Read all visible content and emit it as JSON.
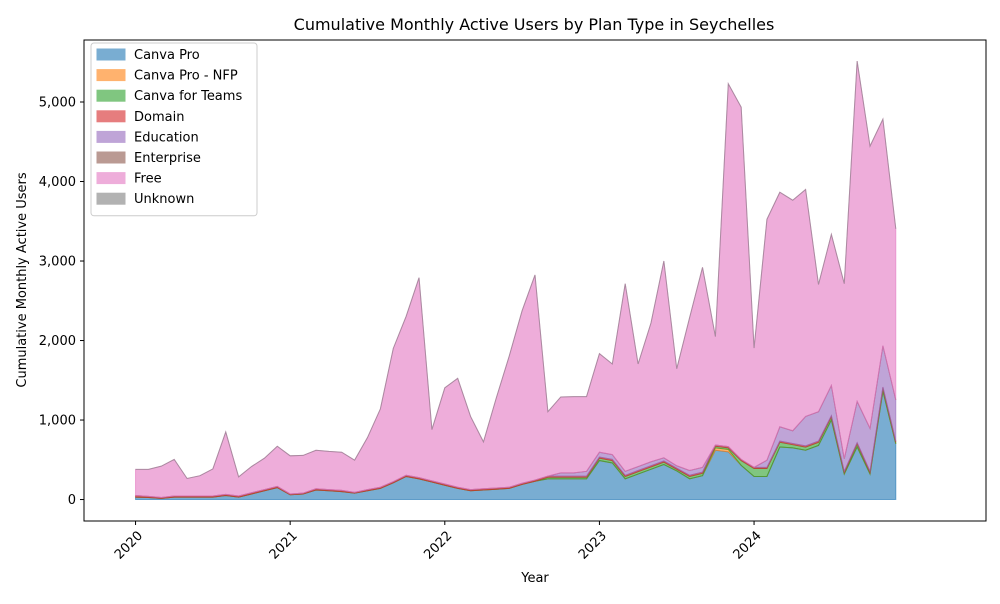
{
  "chart_data": {
    "type": "area",
    "stacked": true,
    "title": "Cumulative Monthly Active Users by Plan Type in Seychelles",
    "xlabel": "Year",
    "ylabel": "Cumulative Monthly Active Users",
    "x_ticks": [
      "2020",
      "2021",
      "2022",
      "2023",
      "2024"
    ],
    "y_ticks": [
      "0",
      "1,000",
      "2,000",
      "3,000",
      "4,000",
      "5,000"
    ],
    "ylim": [
      -270,
      5780
    ],
    "x_range": [
      "2019-09",
      "2025-07"
    ],
    "grid": false,
    "legend_position": "top-left",
    "x": [
      "2020-01",
      "2020-02",
      "2020-03",
      "2020-04",
      "2020-05",
      "2020-06",
      "2020-07",
      "2020-08",
      "2020-09",
      "2020-10",
      "2020-11",
      "2020-12",
      "2021-01",
      "2021-02",
      "2021-03",
      "2021-04",
      "2021-05",
      "2021-06",
      "2021-07",
      "2021-08",
      "2021-09",
      "2021-10",
      "2021-11",
      "2021-12",
      "2022-01",
      "2022-02",
      "2022-03",
      "2022-04",
      "2022-05",
      "2022-06",
      "2022-07",
      "2022-08",
      "2022-09",
      "2022-10",
      "2022-11",
      "2022-12",
      "2023-01",
      "2023-02",
      "2023-03",
      "2023-04",
      "2023-05",
      "2023-06",
      "2023-07",
      "2023-08",
      "2023-09",
      "2023-10",
      "2023-11",
      "2023-12",
      "2024-01",
      "2024-02",
      "2024-03",
      "2024-04",
      "2024-05",
      "2024-06",
      "2024-07",
      "2024-08",
      "2024-09",
      "2024-10",
      "2024-11",
      "2024-12"
    ],
    "series": [
      {
        "name": "Canva Pro",
        "color": "#1f77b4",
        "values": [
          30,
          25,
          15,
          30,
          30,
          30,
          30,
          50,
          30,
          70,
          110,
          150,
          60,
          70,
          120,
          110,
          100,
          80,
          110,
          140,
          210,
          290,
          260,
          220,
          180,
          140,
          110,
          120,
          130,
          140,
          190,
          230,
          260,
          260,
          260,
          260,
          490,
          460,
          260,
          320,
          380,
          440,
          360,
          260,
          300,
          620,
          600,
          430,
          290,
          290,
          660,
          650,
          620,
          680,
          1000,
          320,
          660,
          320,
          1360,
          700
        ]
      },
      {
        "name": "Canva Pro - NFP",
        "color": "#ff7f0e",
        "values": [
          0,
          0,
          0,
          0,
          0,
          0,
          0,
          0,
          0,
          0,
          0,
          0,
          0,
          0,
          0,
          0,
          0,
          0,
          0,
          0,
          0,
          0,
          0,
          0,
          0,
          0,
          0,
          0,
          0,
          0,
          0,
          0,
          0,
          0,
          0,
          0,
          0,
          0,
          0,
          0,
          0,
          0,
          0,
          0,
          0,
          30,
          30,
          0,
          0,
          0,
          0,
          0,
          0,
          0,
          0,
          0,
          0,
          0,
          0,
          0
        ]
      },
      {
        "name": "Canva for Teams",
        "color": "#2ca02c",
        "values": [
          0,
          0,
          0,
          0,
          0,
          0,
          0,
          0,
          0,
          0,
          0,
          0,
          0,
          0,
          0,
          0,
          0,
          0,
          0,
          0,
          0,
          0,
          0,
          0,
          0,
          0,
          0,
          0,
          0,
          0,
          0,
          0,
          20,
          20,
          20,
          20,
          30,
          30,
          30,
          30,
          30,
          30,
          20,
          30,
          30,
          20,
          20,
          60,
          100,
          100,
          60,
          40,
          40,
          40,
          40,
          20,
          40,
          20,
          40,
          20
        ]
      },
      {
        "name": "Domain",
        "color": "#d62728",
        "values": [
          20,
          15,
          10,
          15,
          15,
          15,
          15,
          15,
          15,
          15,
          15,
          15,
          10,
          10,
          15,
          15,
          15,
          10,
          15,
          15,
          15,
          15,
          15,
          15,
          15,
          15,
          15,
          15,
          15,
          15,
          15,
          15,
          15,
          15,
          15,
          15,
          15,
          15,
          15,
          15,
          15,
          15,
          15,
          15,
          15,
          15,
          15,
          15,
          15,
          15,
          15,
          15,
          15,
          15,
          15,
          15,
          15,
          15,
          15,
          15
        ]
      },
      {
        "name": "Education",
        "color": "#9467bd",
        "values": [
          0,
          0,
          0,
          0,
          0,
          0,
          0,
          0,
          0,
          0,
          0,
          0,
          0,
          0,
          0,
          0,
          0,
          0,
          0,
          0,
          0,
          0,
          0,
          0,
          0,
          0,
          0,
          0,
          0,
          0,
          0,
          0,
          0,
          40,
          40,
          60,
          60,
          60,
          50,
          50,
          50,
          40,
          30,
          60,
          60,
          0,
          0,
          0,
          0,
          90,
          180,
          160,
          370,
          370,
          380,
          160,
          520,
          540,
          520,
          520
        ]
      },
      {
        "name": "Enterprise",
        "color": "#8c564b",
        "values": [
          0,
          0,
          0,
          0,
          0,
          0,
          0,
          0,
          0,
          0,
          0,
          0,
          0,
          0,
          0,
          0,
          0,
          0,
          0,
          0,
          0,
          0,
          0,
          0,
          0,
          0,
          0,
          0,
          0,
          0,
          0,
          0,
          0,
          0,
          0,
          0,
          0,
          0,
          0,
          0,
          0,
          0,
          0,
          0,
          0,
          0,
          0,
          0,
          0,
          0,
          0,
          0,
          0,
          0,
          0,
          0,
          0,
          0,
          0,
          0
        ]
      },
      {
        "name": "Free",
        "color": "#e377c2",
        "values": [
          330,
          340,
          395,
          460,
          220,
          255,
          340,
          785,
          240,
          330,
          395,
          505,
          480,
          475,
          485,
          480,
          480,
          405,
          655,
          985,
          1675,
          2000,
          2515,
          645,
          1210,
          1370,
          920,
          590,
          1135,
          1650,
          2170,
          2580,
          810,
          955,
          960,
          940,
          1240,
          1140,
          2360,
          1290,
          1745,
          2475,
          1220,
          1925,
          2515,
          1365,
          4565,
          4430,
          1500,
          3030,
          2950,
          2900,
          2855,
          1600,
          1900,
          2200,
          4280,
          3550,
          2850,
          2150
        ]
      },
      {
        "name": "Unknown",
        "color": "#7f7f7f",
        "values": [
          0,
          0,
          0,
          0,
          0,
          0,
          0,
          0,
          0,
          0,
          0,
          0,
          0,
          0,
          0,
          0,
          0,
          0,
          0,
          0,
          0,
          0,
          0,
          0,
          0,
          0,
          0,
          0,
          0,
          0,
          0,
          0,
          0,
          0,
          0,
          0,
          0,
          0,
          0,
          0,
          0,
          0,
          0,
          0,
          0,
          0,
          0,
          0,
          0,
          0,
          0,
          0,
          0,
          0,
          0,
          0,
          0,
          0,
          0,
          0
        ]
      }
    ]
  }
}
